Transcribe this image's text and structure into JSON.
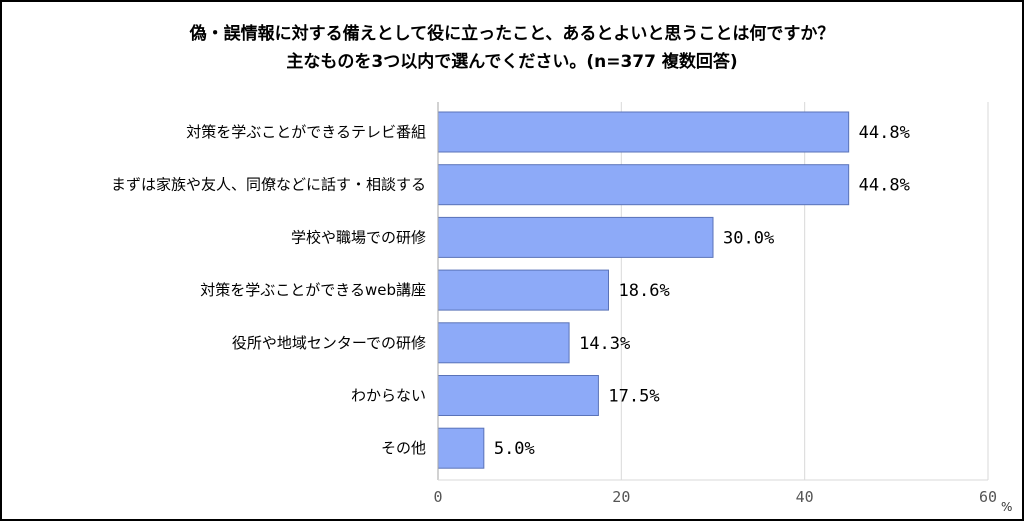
{
  "chart_data": {
    "type": "bar",
    "orientation": "horizontal",
    "title": "偽・誤情報に対する備えとして役に立ったこと、あるとよいと思うことは何ですか？",
    "subtitle": "主なものを3つ以内で選んでください。(n=377 複数回答)",
    "categories": [
      "対策を学ぶことができるテレビ番組",
      "まずは家族や友人、同僚などに話す・相談する",
      "学校や職場での研修",
      "対策を学ぶことができるweb講座",
      "役所や地域センターでの研修",
      "わからない",
      "その他"
    ],
    "values": [
      44.8,
      44.8,
      30.0,
      18.6,
      14.3,
      17.5,
      5.0
    ],
    "value_labels": [
      "44.8%",
      "44.8%",
      "30.0%",
      "18.6%",
      "14.3%",
      "17.5%",
      "5.0%"
    ],
    "xlim": [
      0,
      60
    ],
    "xticks": [
      "0",
      "20",
      "40",
      "60"
    ],
    "unit": "%",
    "grid": true,
    "colors": {
      "bar_fill": "#8DAAF8",
      "bar_stroke": "#5A73B8",
      "grid": "#D9D9D9"
    }
  }
}
